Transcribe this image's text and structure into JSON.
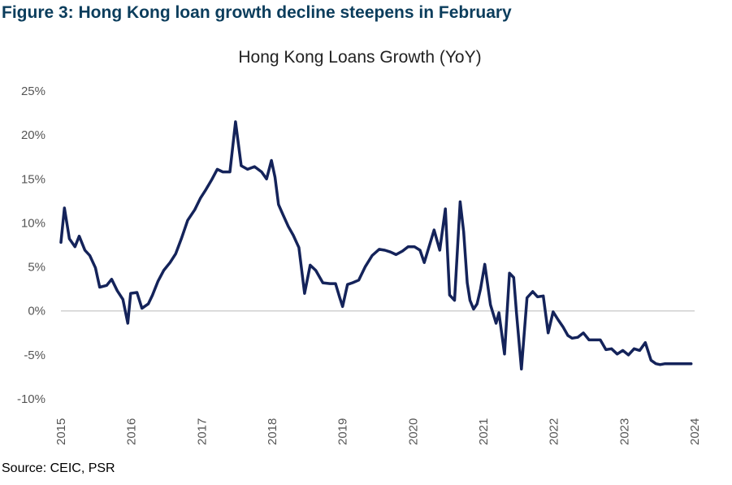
{
  "figure_title": "Figure 3: Hong Kong loan growth decline steepens in February",
  "source": "Source: CEIC, PSR",
  "chart_data": {
    "type": "line",
    "title": "Hong Kong Loans Growth (YoY)",
    "xlabel": "",
    "ylabel": "",
    "ylim": [
      -10,
      25
    ],
    "xlim": [
      2015,
      2024.2
    ],
    "yticks": [
      25,
      20,
      15,
      10,
      5,
      0,
      -5,
      -10
    ],
    "ytick_labels": [
      "25%",
      "20%",
      "15%",
      "10%",
      "5%",
      "0%",
      "-5%",
      "-10%"
    ],
    "xticks": [
      2015,
      2016,
      2017,
      2018,
      2019,
      2020,
      2021,
      2022,
      2023,
      2024
    ],
    "xtick_labels": [
      "2015",
      "2016",
      "2017",
      "2018",
      "2019",
      "2020",
      "2021",
      "2022",
      "2023",
      "2024"
    ],
    "zero_line": true,
    "grid": false,
    "series": [
      {
        "name": "",
        "color": "#14235a",
        "x": [
          2015.0,
          2015.05,
          2015.12,
          2015.2,
          2015.26,
          2015.34,
          2015.41,
          2015.49,
          2015.55,
          2015.65,
          2015.72,
          2015.8,
          2015.88,
          2015.95,
          2015.99,
          2016.08,
          2016.15,
          2016.24,
          2016.3,
          2016.38,
          2016.46,
          2016.55,
          2016.63,
          2016.71,
          2016.8,
          2016.9,
          2016.98,
          2017.06,
          2017.14,
          2017.22,
          2017.3,
          2017.4,
          2017.48,
          2017.56,
          2017.65,
          2017.75,
          2017.85,
          2017.92,
          2017.99,
          2018.04,
          2018.09,
          2018.15,
          2018.23,
          2018.3,
          2018.38,
          2018.46,
          2018.54,
          2018.62,
          2018.72,
          2018.82,
          2018.9,
          2018.96,
          2019.0,
          2019.07,
          2019.14,
          2019.23,
          2019.32,
          2019.42,
          2019.52,
          2019.6,
          2019.68,
          2019.76,
          2019.85,
          2019.93,
          2020.02,
          2020.1,
          2020.16,
          2020.24,
          2020.3,
          2020.38,
          2020.46,
          2020.52,
          2020.59,
          2020.67,
          2020.72,
          2020.77,
          2020.81,
          2020.86,
          2020.91,
          2020.96,
          2021.02,
          2021.1,
          2021.18,
          2021.22,
          2021.3,
          2021.37,
          2021.43,
          2021.47,
          2021.54,
          2021.62,
          2021.7,
          2021.77,
          2021.85,
          2021.92,
          2021.99,
          2022.06,
          2022.13,
          2022.2,
          2022.26,
          2022.34,
          2022.42,
          2022.5,
          2022.58,
          2022.66,
          2022.74,
          2022.82,
          2022.9,
          2022.98,
          2023.06,
          2023.14,
          2023.22,
          2023.3,
          2023.38,
          2023.45,
          2023.51,
          2023.58,
          2023.66,
          2023.74,
          2023.79,
          2023.86,
          2023.95
        ],
        "y": [
          7.8,
          11.7,
          8.2,
          7.3,
          8.5,
          6.9,
          6.3,
          4.9,
          2.7,
          2.9,
          3.6,
          2.3,
          1.3,
          -1.4,
          2.0,
          2.1,
          0.3,
          0.8,
          1.8,
          3.4,
          4.6,
          5.5,
          6.5,
          8.2,
          10.3,
          11.5,
          12.8,
          13.8,
          14.9,
          16.1,
          15.8,
          15.8,
          21.5,
          16.5,
          16.1,
          16.4,
          15.8,
          15.0,
          17.1,
          15.2,
          12.1,
          11.0,
          9.6,
          8.6,
          7.2,
          2.0,
          5.2,
          4.6,
          3.2,
          3.1,
          3.1,
          1.5,
          0.5,
          3.0,
          3.2,
          3.5,
          5.0,
          6.3,
          7.0,
          6.9,
          6.7,
          6.4,
          6.8,
          7.3,
          7.3,
          6.9,
          5.5,
          7.6,
          9.2,
          6.9,
          11.6,
          1.8,
          1.2,
          12.4,
          9.0,
          3.2,
          1.2,
          0.2,
          0.8,
          2.5,
          5.3,
          0.7,
          -1.4,
          -0.2,
          -4.9,
          4.3,
          3.8,
          -0.2,
          -6.6,
          1.5,
          2.2,
          1.6,
          1.7,
          -2.5,
          -0.1,
          -1.0,
          -1.8,
          -2.8,
          -3.1,
          -3.0,
          -2.5,
          -3.3,
          -3.3,
          -3.3,
          -4.4,
          -4.3,
          -4.9,
          -4.5,
          -5.0,
          -4.3,
          -4.5,
          -3.6,
          -5.6,
          -6.0,
          -6.1,
          -6.0,
          -6.0,
          -6.0,
          -6.0,
          -6.0,
          -6.0
        ]
      }
    ]
  }
}
